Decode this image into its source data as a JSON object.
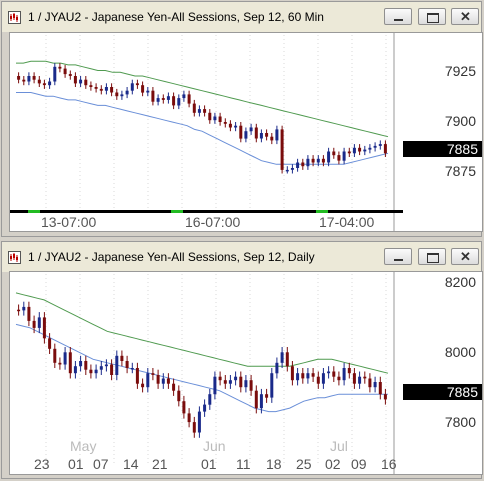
{
  "window1": {
    "title": "1 / JYAU2 - Japanese Yen-All Sessions, Sep 12, 60 Min",
    "y_ticks": [
      "7925",
      "7900",
      "7875"
    ],
    "last_price": "7885",
    "x_labels": [
      "13-07:00",
      "16-07:00",
      "17-04:00"
    ]
  },
  "window2": {
    "title": "1 / JYAU2 - Japanese Yen-All Sessions, Sep 12, Daily",
    "y_ticks": [
      "8200",
      "8000",
      "7800"
    ],
    "last_price": "7885",
    "month_labels": [
      "May",
      "Jun",
      "Jul"
    ],
    "x_labels": [
      "23",
      "01",
      "07",
      "14",
      "21",
      "01",
      "11",
      "18",
      "25",
      "02",
      "09",
      "16"
    ]
  },
  "colors": {
    "up": "#1a2a8a",
    "down": "#7a0c0c",
    "upper_band": "#4f9a4f",
    "lower_band": "#6a8fd8",
    "session_bar": "#000000",
    "session_mark": "#22bb22"
  },
  "chart_data": [
    {
      "type": "candlestick",
      "title": "1 / JYAU2 - Japanese Yen-All Sessions, Sep 12, 60 Min",
      "ylim": [
        7858,
        7946
      ],
      "y_ticks": [
        7925,
        7900,
        7875
      ],
      "x_labels": [
        "13-07:00",
        "16-07:00",
        "17-04:00"
      ],
      "last": 7885,
      "closes": [
        7925,
        7924,
        7927,
        7925,
        7923,
        7922,
        7924,
        7932,
        7931,
        7928,
        7927,
        7923,
        7925,
        7922,
        7921,
        7920,
        7919,
        7921,
        7918,
        7916,
        7917,
        7919,
        7923,
        7922,
        7918,
        7919,
        7913,
        7915,
        7914,
        7916,
        7911,
        7915,
        7917,
        7912,
        7907,
        7909,
        7907,
        7903,
        7905,
        7902,
        7901,
        7899,
        7900,
        7893,
        7897,
        7899,
        7893,
        7896,
        7894,
        7892,
        7898,
        7876,
        7876,
        7877,
        7880,
        7878,
        7882,
        7880,
        7882,
        7880,
        7886,
        7884,
        7881,
        7886,
        7885,
        7888,
        7886,
        7887,
        7888,
        7889,
        7890,
        7885
      ],
      "upper_band": [
        7934,
        7934,
        7935,
        7935,
        7935,
        7934,
        7934,
        7933,
        7933,
        7932,
        7931,
        7930,
        7930,
        7929,
        7929,
        7928,
        7927,
        7927,
        7926,
        7925,
        7924,
        7923,
        7922,
        7921,
        7920,
        7919,
        7918,
        7917,
        7916,
        7915,
        7914,
        7913,
        7912,
        7911,
        7910,
        7909,
        7908,
        7907,
        7906,
        7905,
        7904,
        7903,
        7902,
        7901,
        7900,
        7899,
        7898,
        7897,
        7896,
        7895,
        7894
      ],
      "lower_band": [
        7918,
        7918,
        7918,
        7917,
        7916,
        7916,
        7915,
        7914,
        7914,
        7913,
        7912,
        7911,
        7911,
        7910,
        7909,
        7908,
        7907,
        7906,
        7905,
        7904,
        7903,
        7902,
        7901,
        7900,
        7898,
        7897,
        7895,
        7893,
        7891,
        7889,
        7887,
        7885,
        7883,
        7881,
        7880,
        7879,
        7879,
        7879,
        7879,
        7879,
        7879,
        7879,
        7879,
        7879,
        7879,
        7880,
        7881,
        7882,
        7883,
        7884,
        7885
      ]
    },
    {
      "type": "candlestick",
      "title": "1 / JYAU2 - Japanese Yen-All Sessions, Sep 12, Daily",
      "ylim": [
        7720,
        8250
      ],
      "y_ticks": [
        8200,
        8000,
        7800
      ],
      "month_labels": [
        "May",
        "Jun",
        "Jul"
      ],
      "x_labels": [
        "23",
        "01",
        "07",
        "14",
        "21",
        "01",
        "11",
        "18",
        "25",
        "02",
        "09",
        "16"
      ],
      "last": 7885,
      "closes": [
        8140,
        8150,
        8110,
        8090,
        8120,
        8060,
        8030,
        7990,
        7985,
        8020,
        7960,
        7980,
        7995,
        7970,
        7960,
        7970,
        7980,
        7985,
        7955,
        8010,
        7995,
        7975,
        7975,
        7930,
        7920,
        7960,
        7955,
        7930,
        7945,
        7930,
        7910,
        7880,
        7845,
        7820,
        7790,
        7850,
        7870,
        7900,
        7950,
        7940,
        7930,
        7940,
        7950,
        7920,
        7940,
        7910,
        7860,
        7900,
        7890,
        7960,
        7990,
        8020,
        7980,
        7940,
        7960,
        7945,
        7960,
        7950,
        7930,
        7960,
        7965,
        7950,
        7940,
        7975,
        7960,
        7930,
        7950,
        7945,
        7920,
        7935,
        7900,
        7885
      ],
      "upper_band": [
        8190,
        8185,
        8180,
        8175,
        8170,
        8160,
        8150,
        8140,
        8130,
        8120,
        8110,
        8100,
        8090,
        8080,
        8075,
        8070,
        8065,
        8060,
        8055,
        8050,
        8045,
        8040,
        8035,
        8030,
        8025,
        8020,
        8015,
        8010,
        8005,
        8000,
        7995,
        7990,
        7985,
        7980,
        7980,
        7980,
        7980,
        7980,
        7980,
        7980,
        7985,
        7990,
        7995,
        8000,
        8000,
        8000,
        7995,
        7990,
        7985,
        7980,
        7975,
        7970,
        7965,
        7960
      ],
      "lower_band": [
        8100,
        8095,
        8090,
        8080,
        8070,
        8060,
        8050,
        8040,
        8030,
        8020,
        8010,
        8000,
        7995,
        7990,
        7985,
        7980,
        7975,
        7970,
        7965,
        7960,
        7955,
        7950,
        7945,
        7940,
        7935,
        7930,
        7925,
        7920,
        7915,
        7910,
        7900,
        7890,
        7880,
        7870,
        7860,
        7855,
        7850,
        7850,
        7855,
        7860,
        7870,
        7880,
        7885,
        7890,
        7890,
        7895,
        7900,
        7900,
        7900,
        7900,
        7900,
        7900,
        7900,
        7900
      ]
    }
  ]
}
